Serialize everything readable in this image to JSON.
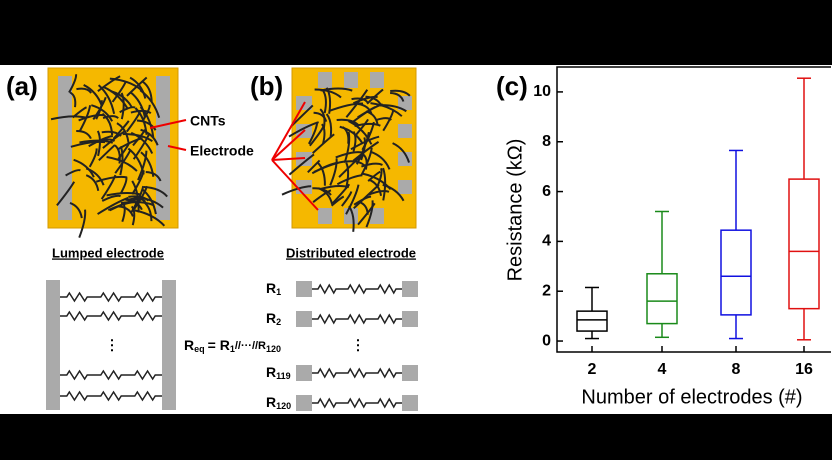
{
  "panel_a": {
    "label": "(a)",
    "cnts": "CNTs",
    "electrode": "Electrode",
    "caption": "Lumped electrode",
    "dots": "⋮",
    "equation": [
      "R",
      "eq",
      "= R",
      "1",
      "//···//R",
      "120"
    ]
  },
  "panel_b": {
    "label": "(b)",
    "caption": "Distributed electrode",
    "dots": "⋮",
    "resistors": [
      [
        "R",
        "1"
      ],
      [
        "R",
        "2"
      ],
      [
        "R",
        "119"
      ],
      [
        "R",
        "120"
      ]
    ]
  },
  "chart_data": {
    "type": "box",
    "panel_label": "(c)",
    "y_label": "Resistance (kΩ)",
    "x_label": "Number of electrodes (#)",
    "categories": [
      "2",
      "4",
      "8",
      "16"
    ],
    "colors": [
      "#000000",
      "#1a8a1a",
      "#1010e0",
      "#e01010"
    ],
    "boxes": [
      {
        "min": 0.1,
        "q1": 0.4,
        "median": 0.85,
        "q3": 1.2,
        "max": 2.15
      },
      {
        "min": 0.15,
        "q1": 0.7,
        "median": 1.6,
        "q3": 2.7,
        "max": 5.2
      },
      {
        "min": 0.1,
        "q1": 1.05,
        "median": 2.6,
        "q3": 4.45,
        "max": 7.65
      },
      {
        "min": 0.05,
        "q1": 1.3,
        "median": 3.6,
        "q3": 6.5,
        "max": 10.55
      }
    ],
    "ylim": [
      -0.44,
      11
    ],
    "yticks": [
      0,
      2,
      4,
      6,
      8,
      10
    ]
  }
}
